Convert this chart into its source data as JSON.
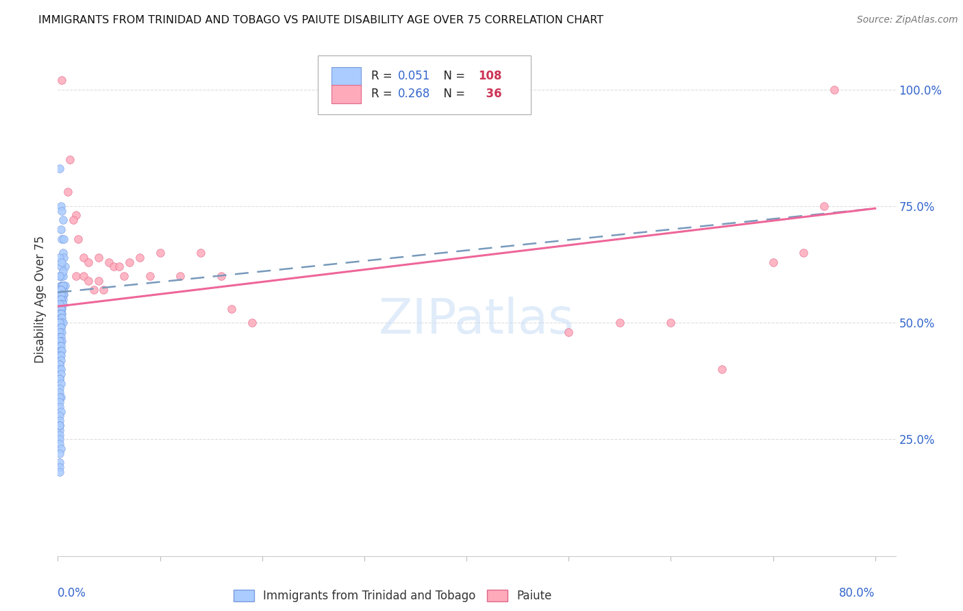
{
  "title": "IMMIGRANTS FROM TRINIDAD AND TOBAGO VS PAIUTE DISABILITY AGE OVER 75 CORRELATION CHART",
  "source": "Source: ZipAtlas.com",
  "ylabel": "Disability Age Over 75",
  "ytick_values": [
    0.25,
    0.5,
    0.75,
    1.0
  ],
  "ytick_labels": [
    "25.0%",
    "50.0%",
    "75.0%",
    "100.0%"
  ],
  "xlim": [
    0.0,
    0.82
  ],
  "ylim": [
    0.0,
    1.1
  ],
  "blue_R": 0.051,
  "blue_N": 108,
  "pink_R": 0.268,
  "pink_N": 36,
  "watermark_text": "ZIPatlas",
  "blue_line_start": 0.565,
  "blue_line_end": 0.745,
  "pink_line_start": 0.535,
  "pink_line_end": 0.745,
  "blue_color": "#aaccff",
  "blue_edge_color": "#7799dd",
  "pink_color": "#ffaabb",
  "pink_edge_color": "#dd6688",
  "blue_line_color": "#7799bb",
  "pink_line_color": "#ee6699",
  "legend_R_color": "#3366cc",
  "legend_N_color": "#cc3355",
  "blue_x": [
    0.002,
    0.003,
    0.003,
    0.004,
    0.004,
    0.005,
    0.005,
    0.006,
    0.006,
    0.007,
    0.002,
    0.002,
    0.003,
    0.003,
    0.004,
    0.004,
    0.005,
    0.005,
    0.006,
    0.007,
    0.002,
    0.002,
    0.003,
    0.003,
    0.004,
    0.004,
    0.005,
    0.005,
    0.006,
    0.003,
    0.002,
    0.002,
    0.003,
    0.003,
    0.004,
    0.004,
    0.005,
    0.005,
    0.003,
    0.003,
    0.002,
    0.002,
    0.003,
    0.003,
    0.004,
    0.004,
    0.005,
    0.003,
    0.002,
    0.002,
    0.003,
    0.003,
    0.004,
    0.002,
    0.002,
    0.003,
    0.003,
    0.004,
    0.004,
    0.005,
    0.002,
    0.002,
    0.003,
    0.003,
    0.004,
    0.002,
    0.002,
    0.003,
    0.003,
    0.004,
    0.002,
    0.002,
    0.003,
    0.003,
    0.004,
    0.002,
    0.002,
    0.003,
    0.003,
    0.002,
    0.002,
    0.002,
    0.003,
    0.003,
    0.002,
    0.002,
    0.003,
    0.002,
    0.002,
    0.003,
    0.002,
    0.002,
    0.002,
    0.003,
    0.002,
    0.002,
    0.002,
    0.002,
    0.002,
    0.002,
    0.003,
    0.002,
    0.002,
    0.002,
    0.002,
    0.002,
    0.002,
    0.002
  ],
  "blue_y": [
    0.83,
    0.75,
    0.7,
    0.74,
    0.68,
    0.72,
    0.65,
    0.68,
    0.64,
    0.62,
    0.6,
    0.64,
    0.6,
    0.62,
    0.6,
    0.63,
    0.6,
    0.61,
    0.58,
    0.58,
    0.57,
    0.6,
    0.58,
    0.58,
    0.57,
    0.58,
    0.57,
    0.58,
    0.56,
    0.57,
    0.56,
    0.57,
    0.56,
    0.57,
    0.56,
    0.55,
    0.56,
    0.55,
    0.55,
    0.56,
    0.55,
    0.54,
    0.55,
    0.54,
    0.54,
    0.53,
    0.54,
    0.53,
    0.54,
    0.53,
    0.53,
    0.52,
    0.52,
    0.52,
    0.52,
    0.52,
    0.51,
    0.51,
    0.5,
    0.5,
    0.5,
    0.5,
    0.49,
    0.49,
    0.48,
    0.48,
    0.47,
    0.47,
    0.46,
    0.46,
    0.46,
    0.45,
    0.45,
    0.44,
    0.44,
    0.43,
    0.43,
    0.43,
    0.42,
    0.41,
    0.41,
    0.4,
    0.4,
    0.39,
    0.38,
    0.38,
    0.37,
    0.36,
    0.35,
    0.34,
    0.34,
    0.33,
    0.32,
    0.31,
    0.3,
    0.29,
    0.27,
    0.26,
    0.25,
    0.24,
    0.23,
    0.22,
    0.2,
    0.19,
    0.18,
    0.28,
    0.28,
    0.28
  ],
  "pink_x": [
    0.004,
    0.012,
    0.01,
    0.018,
    0.015,
    0.02,
    0.025,
    0.018,
    0.03,
    0.025,
    0.03,
    0.035,
    0.04,
    0.04,
    0.05,
    0.045,
    0.055,
    0.06,
    0.065,
    0.07,
    0.08,
    0.09,
    0.1,
    0.12,
    0.14,
    0.16,
    0.17,
    0.19,
    0.5,
    0.55,
    0.6,
    0.65,
    0.7,
    0.73,
    0.75,
    0.76
  ],
  "pink_y": [
    1.02,
    0.85,
    0.78,
    0.73,
    0.72,
    0.68,
    0.64,
    0.6,
    0.63,
    0.6,
    0.59,
    0.57,
    0.64,
    0.59,
    0.63,
    0.57,
    0.62,
    0.62,
    0.6,
    0.63,
    0.64,
    0.6,
    0.65,
    0.6,
    0.65,
    0.6,
    0.53,
    0.5,
    0.48,
    0.5,
    0.5,
    0.4,
    0.63,
    0.65,
    0.75,
    1.0
  ]
}
